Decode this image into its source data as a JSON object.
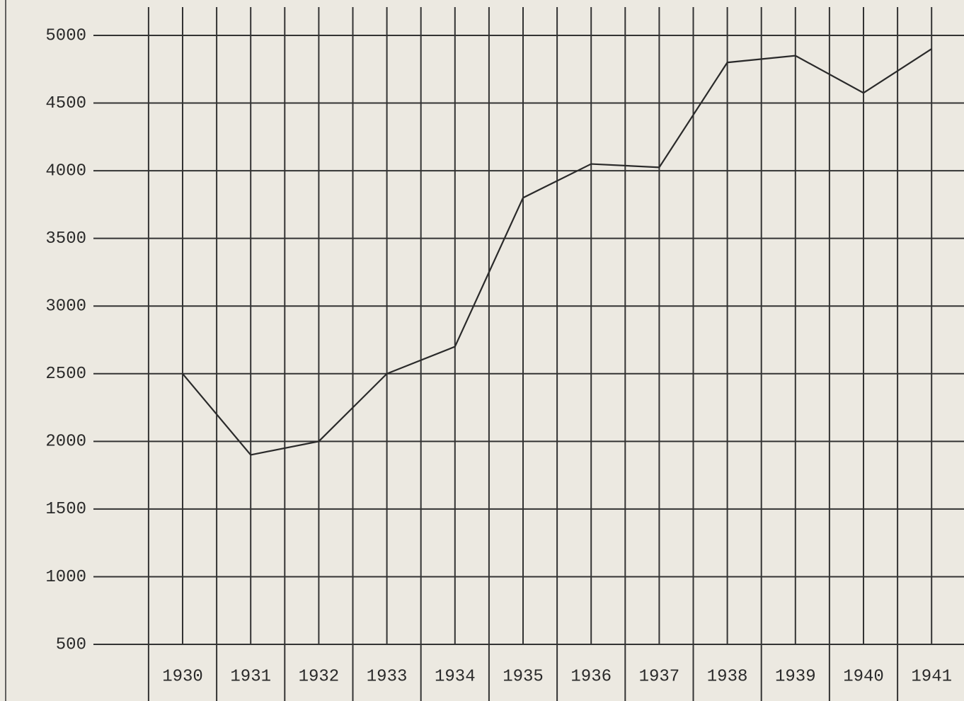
{
  "chart_data": {
    "type": "line",
    "categories": [
      "1930",
      "1931",
      "1932",
      "1933",
      "1934",
      "1935",
      "1936",
      "1937",
      "1938",
      "1939",
      "1940",
      "1941"
    ],
    "values": [
      2500,
      1900,
      2000,
      2500,
      2700,
      3800,
      4050,
      4025,
      4800,
      4850,
      4575,
      4900
    ],
    "color": "#2a2a2a",
    "ylim": [
      500,
      5000
    ],
    "yticks": [
      500,
      1000,
      1500,
      2000,
      2500,
      3000,
      3500,
      4000,
      4500,
      5000
    ],
    "grid": true
  }
}
